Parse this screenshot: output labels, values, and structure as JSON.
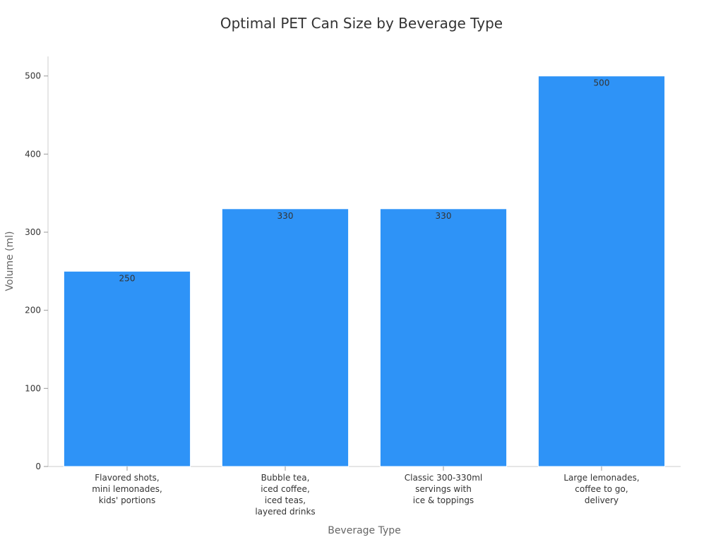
{
  "chart_data": {
    "type": "bar",
    "title": "Optimal PET Can Size by Beverage Type",
    "xlabel": "Beverage Type",
    "ylabel": "Volume (ml)",
    "categories": [
      [
        "Flavored shots,",
        "mini lemonades,",
        "kids' portions"
      ],
      [
        "Bubble tea,",
        "iced coffee,",
        "iced teas,",
        "layered drinks"
      ],
      [
        "Classic 300-330ml",
        "servings with",
        "ice & toppings"
      ],
      [
        "Large lemonades,",
        "coffee to go,",
        "delivery"
      ]
    ],
    "values": [
      250,
      330,
      330,
      500
    ],
    "data_labels": [
      "250",
      "330",
      "330",
      "500"
    ],
    "ylim": [
      0,
      525
    ],
    "yticks": [
      0,
      100,
      200,
      300,
      400,
      500
    ],
    "grid": false,
    "legend": "none",
    "bar_color": "#2e93f7",
    "bar_edge_color": "#ffffff"
  }
}
